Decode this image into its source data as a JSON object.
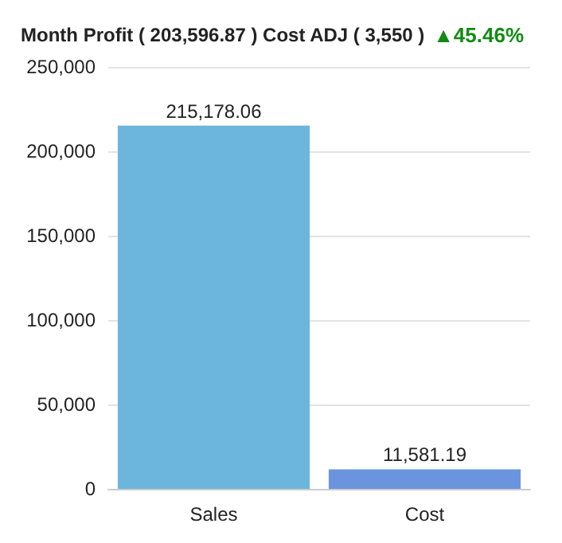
{
  "chart_data": {
    "type": "bar",
    "title": "Month Profit ( 203,596.87 ) Cost ADJ ( 3,550 )",
    "annotations": [
      "▲45.46%"
    ],
    "categories": [
      "Sales",
      "Cost"
    ],
    "values": [
      215178.06,
      11581.19
    ],
    "colors": [
      "#6cb6dd",
      "#6a94de"
    ],
    "value_labels": [
      "215,178.06",
      "11,581.19"
    ],
    "ylim": [
      0,
      250000
    ],
    "yticks": [
      {
        "value": 0,
        "label": "0"
      },
      {
        "value": 50000,
        "label": "50,000"
      },
      {
        "value": 100000,
        "label": "100,000"
      },
      {
        "value": 150000,
        "label": "150,000"
      },
      {
        "value": 200000,
        "label": "200,000"
      },
      {
        "value": 250000,
        "label": "250,000"
      }
    ],
    "grid": "y"
  }
}
